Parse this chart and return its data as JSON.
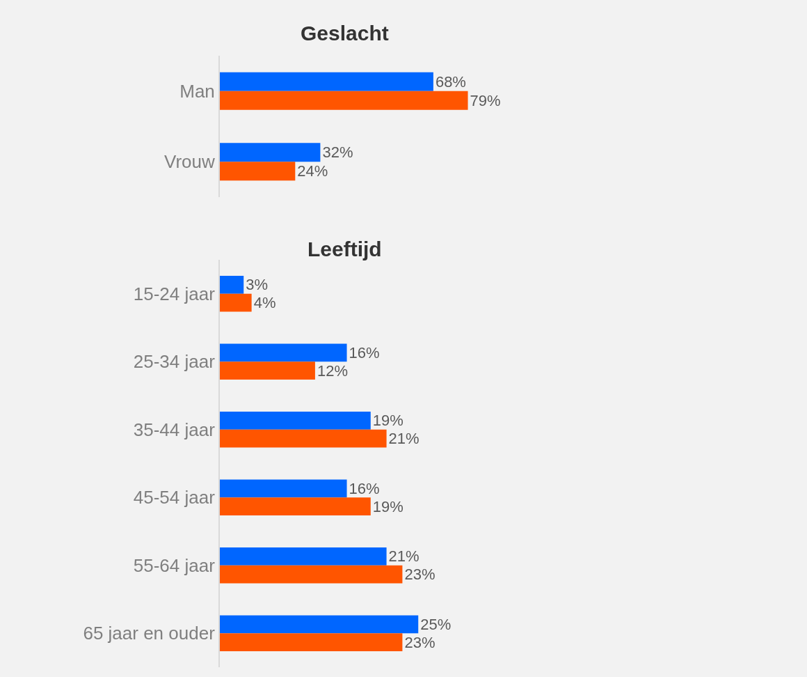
{
  "chart_data": [
    {
      "type": "bar",
      "orientation": "horizontal",
      "title": "Geslacht",
      "categories": [
        "Man",
        "Vrouw"
      ],
      "tick_labels": "y",
      "grid": false,
      "series": [
        {
          "color": "#0066ff",
          "values": [
            68,
            32
          ],
          "value_labels": [
            "68%",
            "32%"
          ]
        },
        {
          "color": "#ff5500",
          "values": [
            79,
            24
          ],
          "value_labels": [
            "79%",
            "24%"
          ]
        }
      ]
    },
    {
      "type": "bar",
      "orientation": "horizontal",
      "title": "Leeftijd",
      "categories": [
        "15-24 jaar",
        "25-34 jaar",
        "35-44 jaar",
        "45-54 jaar",
        "55-64 jaar",
        "65 jaar en ouder"
      ],
      "tick_labels": "y",
      "grid": false,
      "series": [
        {
          "color": "#0066ff",
          "values": [
            3,
            16,
            19,
            16,
            21,
            25
          ],
          "value_labels": [
            "3%",
            "16%",
            "19%",
            "16%",
            "21%",
            "25%"
          ]
        },
        {
          "color": "#ff5500",
          "values": [
            4,
            12,
            21,
            19,
            23,
            23
          ],
          "value_labels": [
            "4%",
            "12%",
            "21%",
            "19%",
            "23%",
            "23%"
          ]
        }
      ]
    }
  ]
}
